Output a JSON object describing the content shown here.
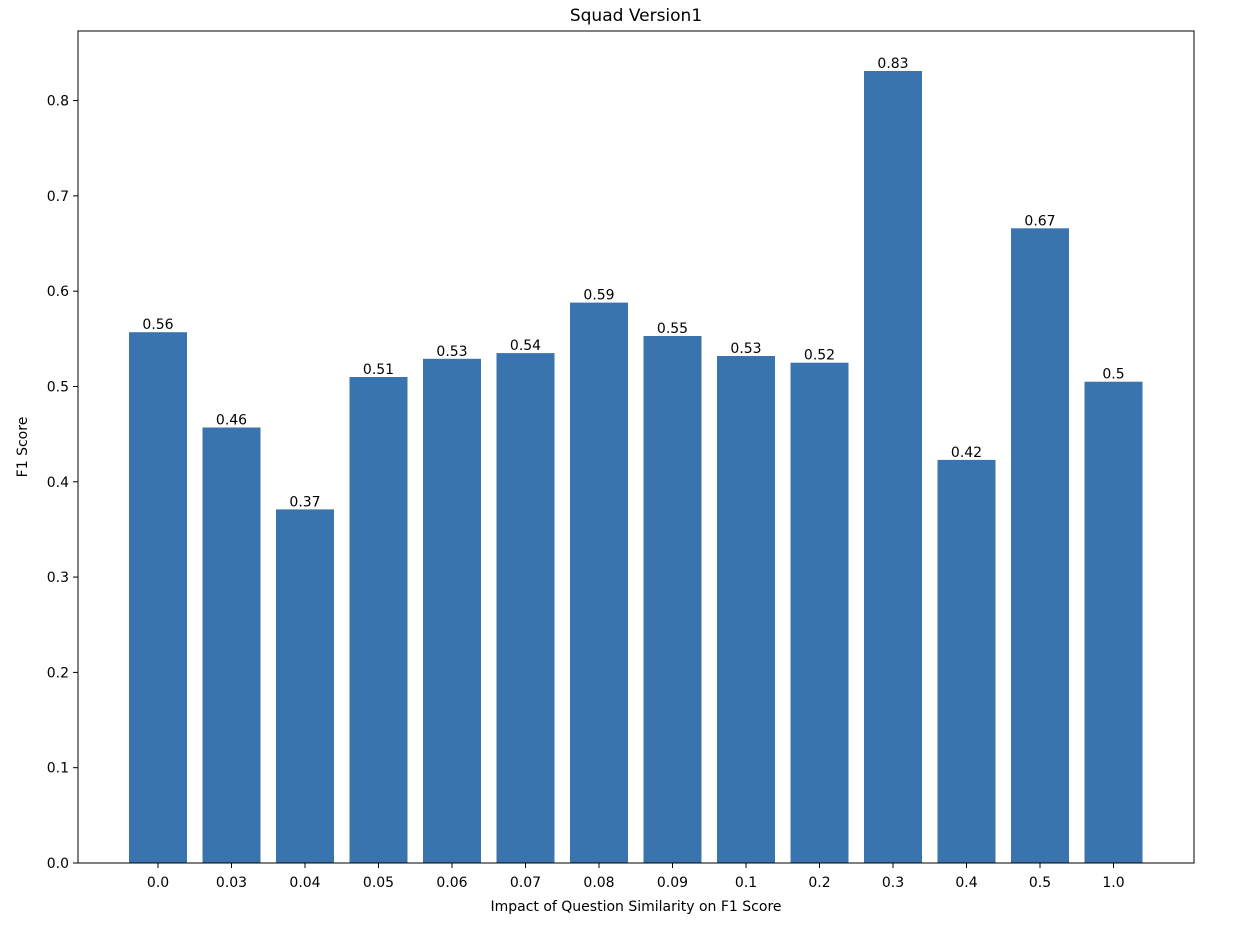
{
  "chart_data": {
    "type": "bar",
    "title": "Squad Version1",
    "xlabel": "Impact of Question Similarity on F1 Score",
    "ylabel": "F1 Score",
    "categories": [
      "0.0",
      "0.03",
      "0.04",
      "0.05",
      "0.06",
      "0.07",
      "0.08",
      "0.09",
      "0.1",
      "0.2",
      "0.3",
      "0.4",
      "0.5",
      "1.0"
    ],
    "values": [
      0.557,
      0.457,
      0.371,
      0.51,
      0.529,
      0.535,
      0.588,
      0.553,
      0.532,
      0.525,
      0.831,
      0.423,
      0.666,
      0.505
    ],
    "data_labels": [
      "0.56",
      "0.46",
      "0.37",
      "0.51",
      "0.53",
      "0.54",
      "0.59",
      "0.55",
      "0.53",
      "0.52",
      "0.83",
      "0.42",
      "0.67",
      "0.5"
    ],
    "yticks": [
      "0.0",
      "0.1",
      "0.2",
      "0.3",
      "0.4",
      "0.5",
      "0.6",
      "0.7",
      "0.8"
    ],
    "ylim": [
      0,
      0.873
    ],
    "bar_color": "#3a74ae",
    "grid": false,
    "legend": "none"
  }
}
